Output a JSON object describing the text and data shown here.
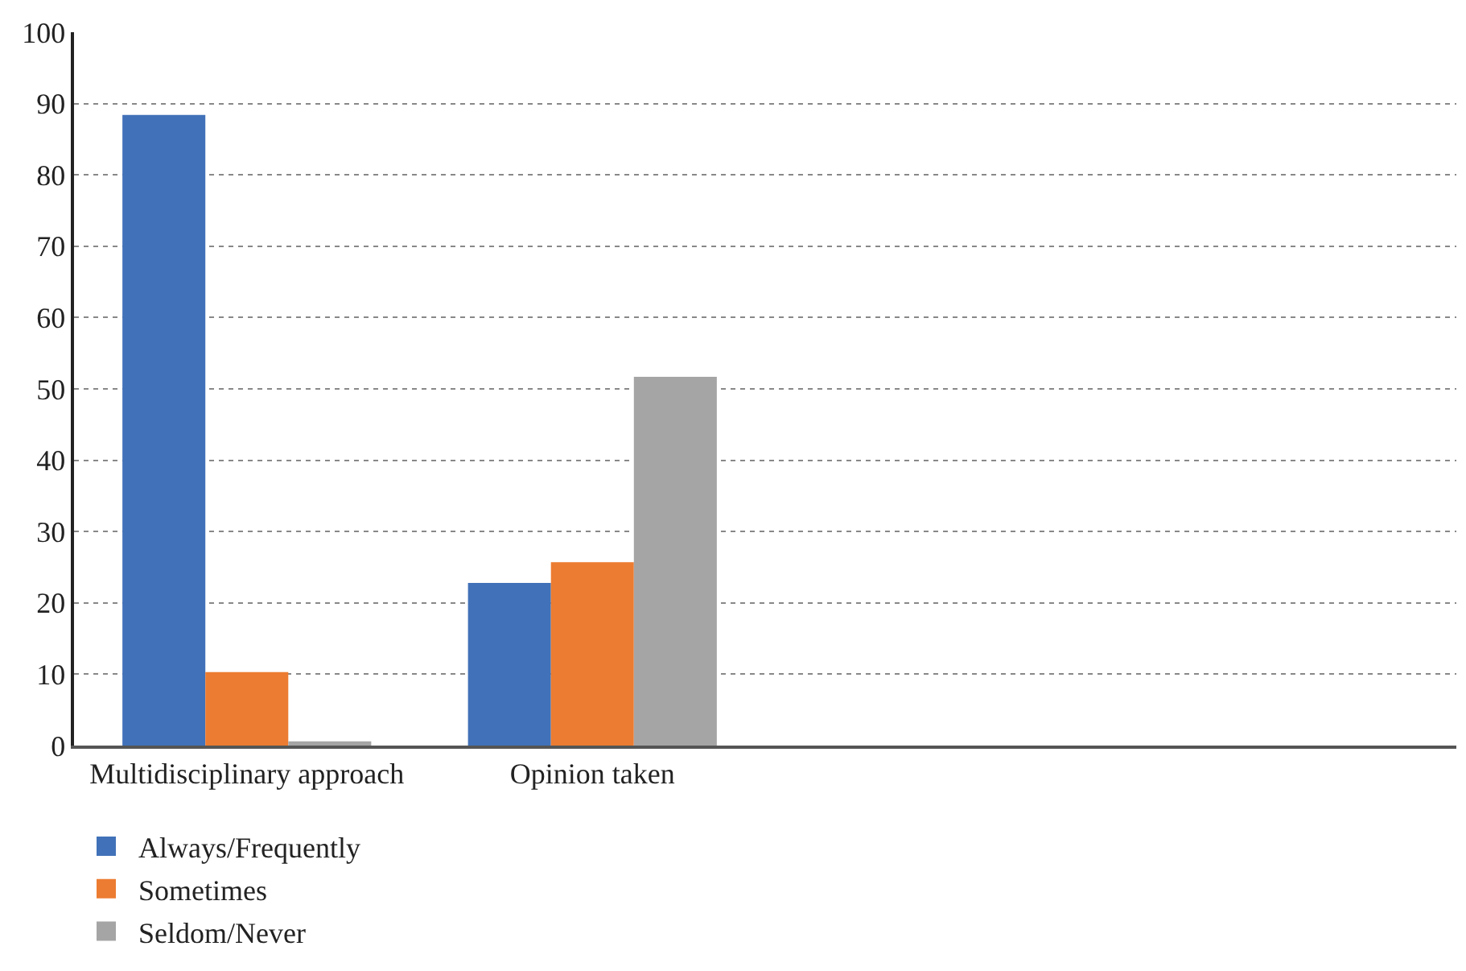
{
  "chart_data": {
    "type": "bar",
    "categories": [
      "Multidisciplinary approach",
      "Opinion taken",
      null,
      null
    ],
    "series": [
      {
        "name": "Always/Frequently",
        "color": "#4171b8",
        "values": [
          88.4,
          22.8,
          null,
          null
        ]
      },
      {
        "name": "Sometimes",
        "color": "#ec7c31",
        "values": [
          10.3,
          25.7,
          null,
          null
        ]
      },
      {
        "name": "Seldom/Never",
        "color": "#a5a5a5",
        "values": [
          0.6,
          51.7,
          null,
          null
        ]
      }
    ],
    "ylim": [
      0,
      100
    ],
    "yticks": [
      0,
      10,
      20,
      30,
      40,
      50,
      60,
      70,
      80,
      90,
      100
    ],
    "grid": "y",
    "legend": "bottom left"
  }
}
